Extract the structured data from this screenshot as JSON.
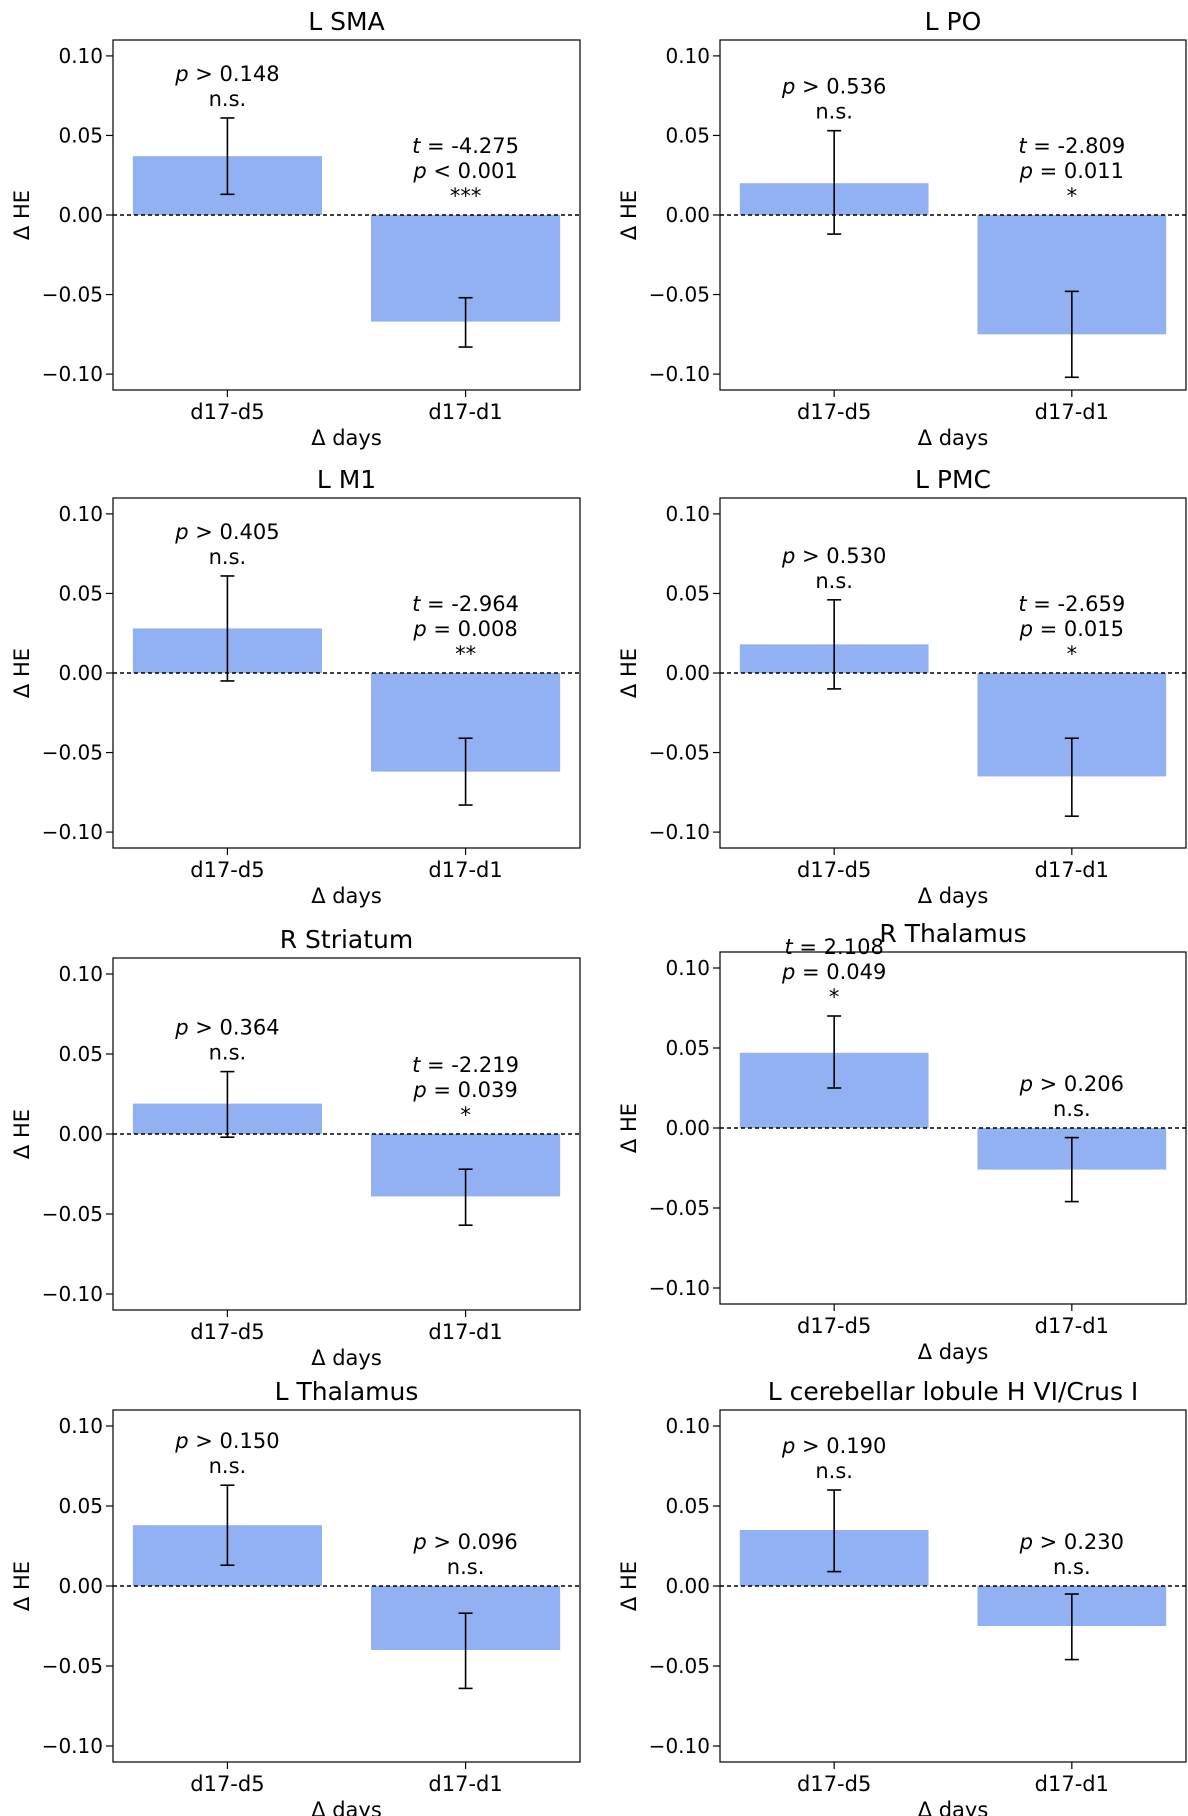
{
  "figure": {
    "bar_color": "#92b1f2",
    "frame_color": "#000000"
  },
  "chart_data": [
    {
      "type": "bar",
      "title": "L SMA",
      "xlabel": "Δ days",
      "ylabel": "Δ HE",
      "ylim": [
        -0.11,
        0.11
      ],
      "yticks": [
        "0.10",
        "0.05",
        "0.00",
        "−0.05",
        "−0.10"
      ],
      "ytick_values": [
        0.1,
        0.05,
        0,
        -0.05,
        -0.1
      ],
      "categories": [
        "d17-d5",
        "d17-d1"
      ],
      "values": [
        0.037,
        -0.067
      ],
      "err_low": [
        0.013,
        -0.083
      ],
      "err_high": [
        0.061,
        -0.052
      ],
      "annotations": [
        {
          "t_label": "t",
          "t_value": " = -4.275",
          "p_label": "p",
          "p_value": " > 0.148",
          "sig": "n.s.",
          "show_t": false
        },
        {
          "t_label": "t",
          "t_value": " = -4.275",
          "p_label": "p",
          "p_value": " < 0.001",
          "sig": "***",
          "show_t": true
        }
      ],
      "grid": false
    },
    {
      "type": "bar",
      "title": "L PO",
      "xlabel": "Δ days",
      "ylabel": "Δ HE",
      "ylim": [
        -0.11,
        0.11
      ],
      "yticks": [
        "0.10",
        "0.05",
        "0.00",
        "−0.05",
        "−0.10"
      ],
      "ytick_values": [
        0.1,
        0.05,
        0,
        -0.05,
        -0.1
      ],
      "categories": [
        "d17-d5",
        "d17-d1"
      ],
      "values": [
        0.02,
        -0.075
      ],
      "err_low": [
        -0.012,
        -0.102
      ],
      "err_high": [
        0.053,
        -0.048
      ],
      "annotations": [
        {
          "t_label": "t",
          "t_value": "",
          "p_label": "p",
          "p_value": " > 0.536",
          "sig": "n.s.",
          "show_t": false
        },
        {
          "t_label": "t",
          "t_value": " = -2.809",
          "p_label": "p",
          "p_value": " = 0.011",
          "sig": "*",
          "show_t": true
        }
      ],
      "grid": false
    },
    {
      "type": "bar",
      "title": "L M1",
      "xlabel": "Δ days",
      "ylabel": "Δ HE",
      "ylim": [
        -0.11,
        0.11
      ],
      "yticks": [
        "0.10",
        "0.05",
        "0.00",
        "−0.05",
        "−0.10"
      ],
      "ytick_values": [
        0.1,
        0.05,
        0,
        -0.05,
        -0.1
      ],
      "categories": [
        "d17-d5",
        "d17-d1"
      ],
      "values": [
        0.028,
        -0.062
      ],
      "err_low": [
        -0.005,
        -0.083
      ],
      "err_high": [
        0.061,
        -0.041
      ],
      "annotations": [
        {
          "t_label": "t",
          "t_value": "",
          "p_label": "p",
          "p_value": " > 0.405",
          "sig": "n.s.",
          "show_t": false
        },
        {
          "t_label": "t",
          "t_value": " = -2.964",
          "p_label": "p",
          "p_value": " = 0.008",
          "sig": "**",
          "show_t": true
        }
      ],
      "grid": false
    },
    {
      "type": "bar",
      "title": "L PMC",
      "xlabel": "Δ days",
      "ylabel": "Δ HE",
      "ylim": [
        -0.11,
        0.11
      ],
      "yticks": [
        "0.10",
        "0.05",
        "0.00",
        "−0.05",
        "−0.10"
      ],
      "ytick_values": [
        0.1,
        0.05,
        0,
        -0.05,
        -0.1
      ],
      "categories": [
        "d17-d5",
        "d17-d1"
      ],
      "values": [
        0.018,
        -0.065
      ],
      "err_low": [
        -0.01,
        -0.09
      ],
      "err_high": [
        0.046,
        -0.041
      ],
      "annotations": [
        {
          "t_label": "t",
          "t_value": "",
          "p_label": "p",
          "p_value": " > 0.530",
          "sig": "n.s.",
          "show_t": false
        },
        {
          "t_label": "t",
          "t_value": " = -2.659",
          "p_label": "p",
          "p_value": " = 0.015",
          "sig": "*",
          "show_t": true
        }
      ],
      "grid": false
    },
    {
      "type": "bar",
      "title": "R Striatum",
      "xlabel": "Δ days",
      "ylabel": "Δ HE",
      "ylim": [
        -0.11,
        0.11
      ],
      "yticks": [
        "0.10",
        "0.05",
        "0.00",
        "−0.05",
        "−0.10"
      ],
      "ytick_values": [
        0.1,
        0.05,
        0,
        -0.05,
        -0.1
      ],
      "categories": [
        "d17-d5",
        "d17-d1"
      ],
      "values": [
        0.019,
        -0.039
      ],
      "err_low": [
        -0.002,
        -0.057
      ],
      "err_high": [
        0.039,
        -0.022
      ],
      "annotations": [
        {
          "t_label": "t",
          "t_value": "",
          "p_label": "p",
          "p_value": " > 0.364",
          "sig": "n.s.",
          "show_t": false
        },
        {
          "t_label": "t",
          "t_value": " = -2.219",
          "p_label": "p",
          "p_value": " = 0.039",
          "sig": "*",
          "show_t": true
        }
      ],
      "grid": false
    },
    {
      "type": "bar",
      "title": "R Thalamus",
      "xlabel": "Δ days",
      "ylabel": "Δ HE",
      "ylim": [
        -0.11,
        0.11
      ],
      "yticks": [
        "0.10",
        "0.05",
        "0.00",
        "−0.05",
        "−0.10"
      ],
      "ytick_values": [
        0.1,
        0.05,
        0,
        -0.05,
        -0.1
      ],
      "categories": [
        "d17-d5",
        "d17-d1"
      ],
      "values": [
        0.047,
        -0.026
      ],
      "err_low": [
        0.025,
        -0.046
      ],
      "err_high": [
        0.07,
        -0.006
      ],
      "annotations": [
        {
          "t_label": "t",
          "t_value": " = 2.108",
          "p_label": "p",
          "p_value": " = 0.049",
          "sig": "*",
          "show_t": true
        },
        {
          "t_label": "t",
          "t_value": "",
          "p_label": "p",
          "p_value": " > 0.206",
          "sig": "n.s.",
          "show_t": false
        }
      ],
      "grid": false
    },
    {
      "type": "bar",
      "title": "L Thalamus",
      "xlabel": "Δ days",
      "ylabel": "Δ HE",
      "ylim": [
        -0.11,
        0.11
      ],
      "yticks": [
        "0.10",
        "0.05",
        "0.00",
        "−0.05",
        "−0.10"
      ],
      "ytick_values": [
        0.1,
        0.05,
        0,
        -0.05,
        -0.1
      ],
      "categories": [
        "d17-d5",
        "d17-d1"
      ],
      "values": [
        0.038,
        -0.04
      ],
      "err_low": [
        0.013,
        -0.064
      ],
      "err_high": [
        0.063,
        -0.017
      ],
      "annotations": [
        {
          "t_label": "t",
          "t_value": "",
          "p_label": "p",
          "p_value": " > 0.150",
          "sig": "n.s.",
          "show_t": false
        },
        {
          "t_label": "t",
          "t_value": "",
          "p_label": "p",
          "p_value": " > 0.096",
          "sig": "n.s.",
          "show_t": false
        }
      ],
      "grid": false
    },
    {
      "type": "bar",
      "title": "L cerebellar lobule H VI/Crus I",
      "xlabel": "Δ days",
      "ylabel": "Δ HE",
      "ylim": [
        -0.11,
        0.11
      ],
      "yticks": [
        "0.10",
        "0.05",
        "0.00",
        "−0.05",
        "−0.10"
      ],
      "ytick_values": [
        0.1,
        0.05,
        0,
        -0.05,
        -0.1
      ],
      "categories": [
        "d17-d5",
        "d17-d1"
      ],
      "values": [
        0.035,
        -0.025
      ],
      "err_low": [
        0.009,
        -0.046
      ],
      "err_high": [
        0.06,
        -0.005
      ],
      "annotations": [
        {
          "t_label": "t",
          "t_value": "",
          "p_label": "p",
          "p_value": " > 0.190",
          "sig": "n.s.",
          "show_t": false
        },
        {
          "t_label": "t",
          "t_value": "",
          "p_label": "p",
          "p_value": " > 0.230",
          "sig": "n.s.",
          "show_t": false
        }
      ],
      "grid": false
    }
  ]
}
